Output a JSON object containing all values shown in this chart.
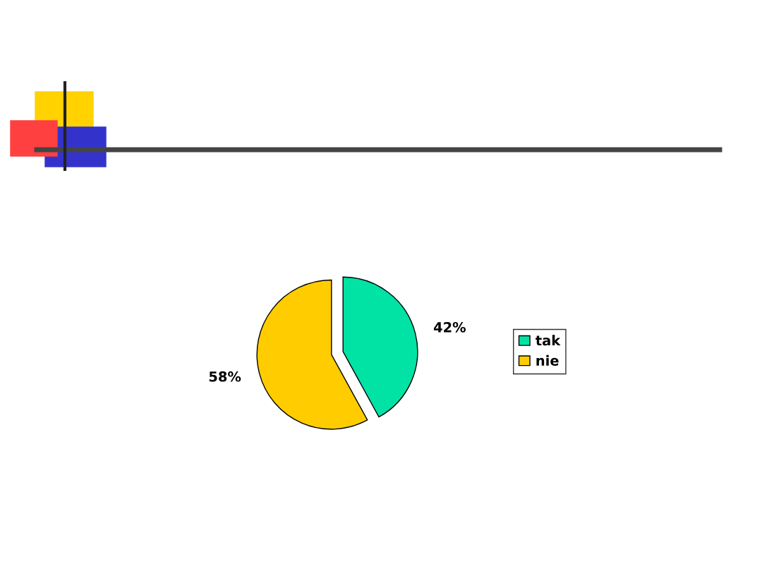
{
  "chart_data": {
    "type": "pie",
    "categories": [
      "tak",
      "nie"
    ],
    "values": [
      42,
      58
    ],
    "value_labels": [
      "42%",
      "58%"
    ],
    "colors": [
      "#00e3a5",
      "#ffcc00"
    ],
    "legend": "right"
  }
}
